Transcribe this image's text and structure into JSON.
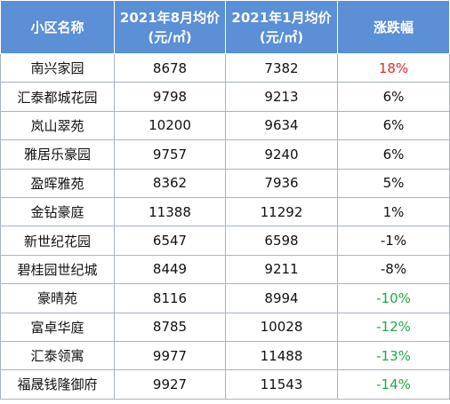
{
  "table": {
    "headers": [
      {
        "lines": [
          "小区名称"
        ]
      },
      {
        "lines": [
          "2021年8月均价",
          "(元/㎡)"
        ]
      },
      {
        "lines": [
          "2021年1月均价",
          "(元/㎡)"
        ]
      },
      {
        "lines": [
          "涨跌幅"
        ]
      }
    ],
    "rows": [
      {
        "name": "南兴家园",
        "aug": "8678",
        "jan": "7382",
        "change": "18%",
        "tone": "up"
      },
      {
        "name": "汇泰都城花园",
        "aug": "9798",
        "jan": "9213",
        "change": "6%",
        "tone": "neutral"
      },
      {
        "name": "岚山翠苑",
        "aug": "10200",
        "jan": "9634",
        "change": "6%",
        "tone": "neutral"
      },
      {
        "name": "雅居乐豪园",
        "aug": "9757",
        "jan": "9240",
        "change": "6%",
        "tone": "neutral"
      },
      {
        "name": "盈晖雅苑",
        "aug": "8362",
        "jan": "7936",
        "change": "5%",
        "tone": "neutral"
      },
      {
        "name": "金钻豪庭",
        "aug": "11388",
        "jan": "11292",
        "change": "1%",
        "tone": "neutral"
      },
      {
        "name": "新世纪花园",
        "aug": "6547",
        "jan": "6598",
        "change": "-1%",
        "tone": "neutral"
      },
      {
        "name": "碧桂园世纪城",
        "aug": "8449",
        "jan": "9211",
        "change": "-8%",
        "tone": "neutral"
      },
      {
        "name": "豪晴苑",
        "aug": "8116",
        "jan": "8994",
        "change": "-10%",
        "tone": "down"
      },
      {
        "name": "富卓华庭",
        "aug": "8785",
        "jan": "10028",
        "change": "-12%",
        "tone": "down"
      },
      {
        "name": "汇泰领寓",
        "aug": "9977",
        "jan": "11488",
        "change": "-13%",
        "tone": "down"
      },
      {
        "name": "福晟钱隆御府",
        "aug": "9927",
        "jan": "11543",
        "change": "-14%",
        "tone": "down"
      }
    ]
  },
  "colors": {
    "header_bg": "#5b8fd6",
    "header_text": "#ffffff",
    "border": "#a7b3c2",
    "rise": "#e32d2d",
    "fall": "#1fa84a",
    "text": "#111111"
  }
}
